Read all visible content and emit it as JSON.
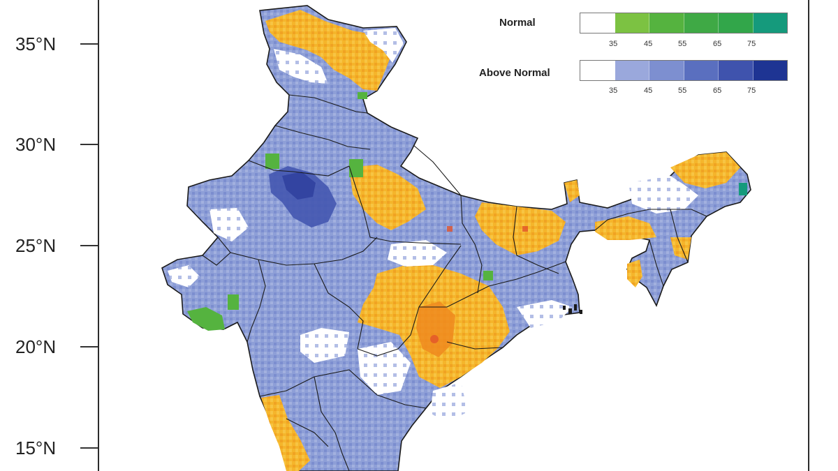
{
  "axis": {
    "lat_labels": [
      "35°N",
      "30°N",
      "25°N",
      "20°N",
      "15°N"
    ]
  },
  "legend": {
    "normal": {
      "title": "Normal",
      "ticks": [
        "35",
        "45",
        "55",
        "65",
        "75"
      ],
      "colors": [
        "#ffffff",
        "#7cc242",
        "#55b33f",
        "#3fa945",
        "#32a64a",
        "#159a7c"
      ]
    },
    "above_normal": {
      "title": "Above Normal",
      "ticks": [
        "35",
        "45",
        "55",
        "65",
        "75"
      ],
      "colors": [
        "#ffffff",
        "#9aa8dc",
        "#7d8fd0",
        "#5a6fbf",
        "#3f53ad",
        "#1e3493"
      ]
    }
  },
  "colors": {
    "above_normal_main": "#8e9fd7",
    "above_normal_dark": "#3b4ca8",
    "below_normal": "#f5b52b",
    "below_normal_dark": "#ef8a1e",
    "normal": "#55b33f",
    "border": "#1a1a1a"
  }
}
